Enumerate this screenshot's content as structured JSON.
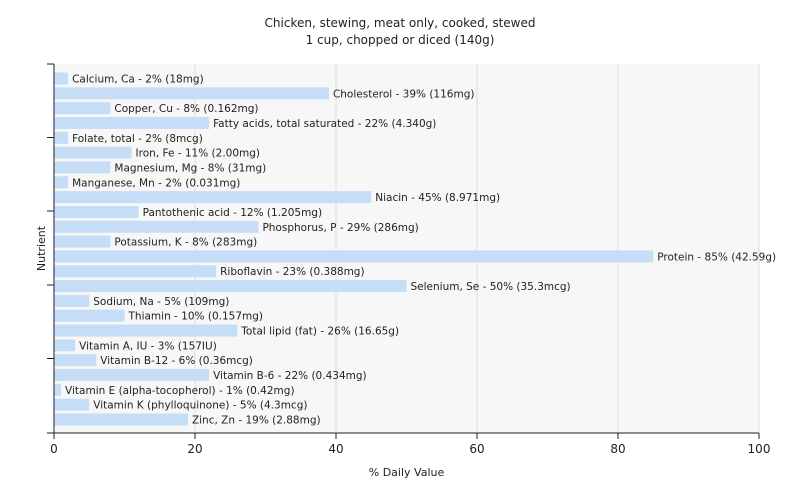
{
  "chart_data": {
    "type": "bar",
    "orientation": "horizontal",
    "title": "Chicken, stewing, meat only, cooked, stewed",
    "subtitle": "1 cup, chopped or diced (140g)",
    "xlabel": "% Daily Value",
    "ylabel": "Nutrient",
    "xlim": [
      0,
      100
    ],
    "xticks": [
      0,
      20,
      40,
      60,
      80,
      100
    ],
    "grid": true,
    "bar_color": "#c6ddf7",
    "categories": [
      "Calcium, Ca",
      "Cholesterol",
      "Copper, Cu",
      "Fatty acids, total saturated",
      "Folate, total",
      "Iron, Fe",
      "Magnesium, Mg",
      "Manganese, Mn",
      "Niacin",
      "Pantothenic acid",
      "Phosphorus, P",
      "Potassium, K",
      "Protein",
      "Riboflavin",
      "Selenium, Se",
      "Sodium, Na",
      "Thiamin",
      "Total lipid (fat)",
      "Vitamin A, IU",
      "Vitamin B-12",
      "Vitamin B-6",
      "Vitamin E (alpha-tocopherol)",
      "Vitamin K (phylloquinone)",
      "Zinc, Zn"
    ],
    "values": [
      2,
      39,
      8,
      22,
      2,
      11,
      8,
      2,
      45,
      12,
      29,
      8,
      85,
      23,
      50,
      5,
      10,
      26,
      3,
      6,
      22,
      1,
      5,
      19
    ],
    "labels": [
      "Calcium, Ca - 2% (18mg)",
      "Cholesterol - 39% (116mg)",
      "Copper, Cu - 8% (0.162mg)",
      "Fatty acids, total saturated - 22% (4.340g)",
      "Folate, total - 2% (8mcg)",
      "Iron, Fe - 11% (2.00mg)",
      "Magnesium, Mg - 8% (31mg)",
      "Manganese, Mn - 2% (0.031mg)",
      "Niacin - 45% (8.971mg)",
      "Pantothenic acid - 12% (1.205mg)",
      "Phosphorus, P - 29% (286mg)",
      "Potassium, K - 8% (283mg)",
      "Protein - 85% (42.59g)",
      "Riboflavin - 23% (0.388mg)",
      "Selenium, Se - 50% (35.3mcg)",
      "Sodium, Na - 5% (109mg)",
      "Thiamin - 10% (0.157mg)",
      "Total lipid (fat) - 26% (16.65g)",
      "Vitamin A, IU - 3% (157IU)",
      "Vitamin B-12 - 6% (0.36mcg)",
      "Vitamin B-6 - 22% (0.434mg)",
      "Vitamin E (alpha-tocopherol) - 1% (0.42mg)",
      "Vitamin K (phylloquinone) - 5% (4.3mcg)",
      "Zinc, Zn - 19% (2.88mg)"
    ]
  }
}
